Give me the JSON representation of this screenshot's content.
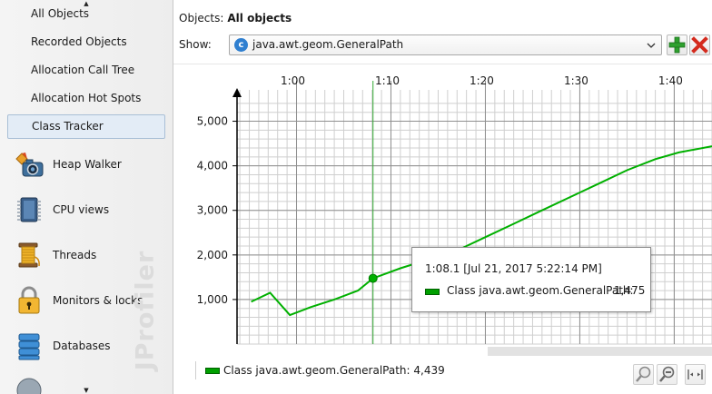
{
  "sidebar": {
    "sub_items": [
      {
        "label": "All Objects"
      },
      {
        "label": "Recorded Objects"
      },
      {
        "label": "Allocation Call Tree"
      },
      {
        "label": "Allocation Hot Spots"
      },
      {
        "label": "Class Tracker",
        "selected": true
      }
    ],
    "views": [
      {
        "label": "Heap Walker",
        "icon": "heap-walker-icon"
      },
      {
        "label": "CPU views",
        "icon": "cpu-chip-icon"
      },
      {
        "label": "Threads",
        "icon": "threads-spool-icon"
      },
      {
        "label": "Monitors & locks",
        "icon": "padlock-icon"
      },
      {
        "label": "Databases",
        "icon": "database-icon"
      }
    ],
    "watermark": "JProfiler"
  },
  "header": {
    "objects_label": "Objects:",
    "objects_value": "All objects",
    "show_label": "Show:",
    "class_selected": "java.awt.geom.GeneralPath",
    "class_icon_letter": "c"
  },
  "chart_data": {
    "type": "line",
    "x_unit": "elapsed time (m:ss)",
    "x_tick_labels": [
      "1:00",
      "1:10",
      "1:20",
      "1:30",
      "1:40"
    ],
    "x_ticks_seconds": [
      60,
      70,
      80,
      90,
      100
    ],
    "xlim_seconds": [
      53.7,
      104.0
    ],
    "ylim": [
      0,
      5500
    ],
    "y_tick_labels": [
      "1,000",
      "2,000",
      "3,000",
      "4,000",
      "5,000"
    ],
    "y_ticks": [
      1000,
      2000,
      3000,
      4000,
      5000
    ],
    "grid": true,
    "series": [
      {
        "name": "Class java.awt.geom.GeneralPath",
        "color": "#00b000",
        "points": [
          [
            55.2,
            950
          ],
          [
            57.2,
            1150
          ],
          [
            59.3,
            650
          ],
          [
            61.5,
            830
          ],
          [
            64.0,
            1000
          ],
          [
            66.5,
            1200
          ],
          [
            68.1,
            1475
          ],
          [
            71.0,
            1700
          ],
          [
            74.0,
            1900
          ],
          [
            77.0,
            2100
          ],
          [
            80.0,
            2400
          ],
          [
            83.0,
            2700
          ],
          [
            86.0,
            3000
          ],
          [
            89.0,
            3300
          ],
          [
            92.0,
            3600
          ],
          [
            95.0,
            3900
          ],
          [
            98.0,
            4150
          ],
          [
            100.5,
            4300
          ],
          [
            104.0,
            4439
          ]
        ]
      }
    ],
    "cursor_seconds": 68.1,
    "tooltip": {
      "time": "1:08.1 [Jul 21, 2017 5:22:14 PM]",
      "series": "Class java.awt.geom.GeneralPath:",
      "value": "1,475"
    },
    "legend": "Class java.awt.geom.GeneralPath: 4,439",
    "legend_position": "bottom"
  },
  "colors": {
    "series": "#00b000",
    "selection_bg": "#e3ecf6",
    "add_button": "#2ea02e",
    "remove_button": "#d42b1e"
  }
}
